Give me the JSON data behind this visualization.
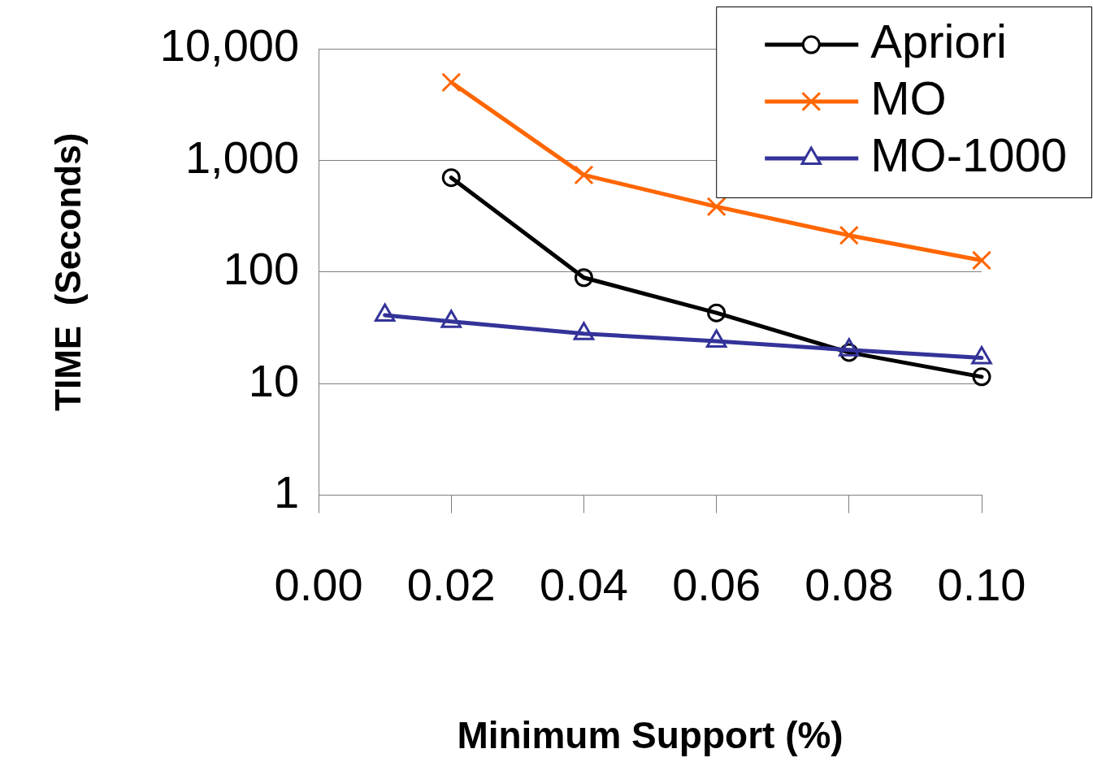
{
  "chart_data": {
    "type": "line",
    "xlabel": "Minimum Support (%)",
    "ylabel": "TIME  (Seconds)",
    "log": "y",
    "grid": "y",
    "legend": "top right",
    "line_style": "solid",
    "xlim": [
      0,
      0.1
    ],
    "xticks": [
      {
        "value": 0,
        "label": "0.00"
      },
      {
        "value": 0.02,
        "label": "0.02"
      },
      {
        "value": 0.04,
        "label": "0.04"
      },
      {
        "value": 0.06,
        "label": "0.06"
      },
      {
        "value": 0.08,
        "label": "0.08"
      },
      {
        "value": 0.1,
        "label": "0.10"
      }
    ],
    "ylim": [
      1,
      10000
    ],
    "yticks": [
      1,
      10,
      100,
      {
        "value": 1000,
        "label": "1,000"
      },
      {
        "value": 10000,
        "label": "10,000"
      }
    ],
    "series": [
      {
        "name": "Apriori",
        "color": "#000000",
        "marker": "circle",
        "x": [
          0.02,
          0.04,
          0.06,
          0.08,
          0.1
        ],
        "values": [
          700,
          89,
          43,
          19,
          11.5
        ]
      },
      {
        "name": "MO",
        "color": "#ff6600",
        "marker": "cross",
        "x": [
          0.02,
          0.04,
          0.06,
          0.08,
          0.1
        ],
        "values": [
          5000,
          740,
          385,
          213,
          127
        ]
      },
      {
        "name": "MO-1000",
        "color": "#333399",
        "marker": "triangle",
        "x": [
          0.01,
          0.02,
          0.04,
          0.06,
          0.08,
          0.1
        ],
        "values": [
          41,
          36,
          28,
          24,
          20,
          17
        ]
      }
    ]
  }
}
